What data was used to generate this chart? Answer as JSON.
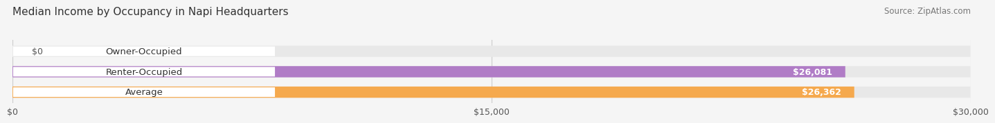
{
  "title": "Median Income by Occupancy in Napi Headquarters",
  "source": "Source: ZipAtlas.com",
  "categories": [
    "Owner-Occupied",
    "Renter-Occupied",
    "Average"
  ],
  "values": [
    0,
    26081,
    26362
  ],
  "bar_colors": [
    "#5ecfcf",
    "#b07cc6",
    "#f5a94e"
  ],
  "value_labels": [
    "$0",
    "$26,081",
    "$26,362"
  ],
  "xlim": [
    0,
    30000
  ],
  "xticks": [
    0,
    15000,
    30000
  ],
  "xticklabels": [
    "$0",
    "$15,000",
    "$30,000"
  ],
  "bar_height": 0.55,
  "background_color": "#f5f5f5",
  "bar_bg_color": "#e8e8e8",
  "title_fontsize": 11,
  "source_fontsize": 8.5,
  "label_fontsize": 9.5,
  "value_fontsize": 9
}
